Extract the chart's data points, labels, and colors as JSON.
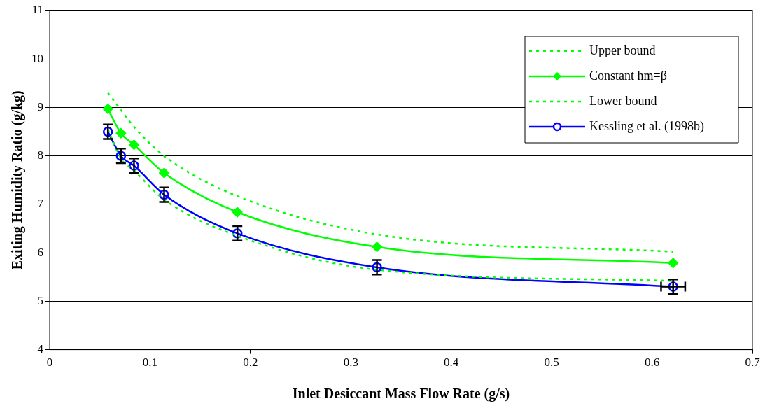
{
  "chart_data": {
    "type": "line",
    "xlabel": "Inlet Desiccant Mass Flow Rate (g/s)",
    "ylabel": "Exiting Humidity Ratio (g/kg)",
    "x": [
      0.058,
      0.071,
      0.084,
      0.114,
      0.187,
      0.326,
      0.621
    ],
    "xlim": [
      0,
      0.7
    ],
    "xticks": [
      0,
      0.1,
      0.2,
      0.3,
      0.4,
      0.5,
      0.6,
      0.7
    ],
    "ylim": [
      4,
      11
    ],
    "yticks": [
      4,
      5,
      6,
      7,
      8,
      9,
      10,
      11
    ],
    "grid": "y",
    "legend": "top right",
    "series": [
      {
        "name": "Upper bound",
        "color": "#00ff00",
        "values": [
          9.3,
          8.95,
          8.6,
          8.0,
          7.17,
          6.38,
          6.02
        ],
        "marker": "none",
        "line_style": "dotted"
      },
      {
        "name": "Constant hm=β",
        "color": "#00ff00",
        "values": [
          8.97,
          8.47,
          8.23,
          7.65,
          6.84,
          6.12,
          5.79
        ],
        "marker": "diamond",
        "line_style": "solid"
      },
      {
        "name": "Lower bound",
        "color": "#00ff00",
        "values": [
          8.55,
          7.95,
          7.7,
          7.1,
          6.35,
          5.65,
          5.42
        ],
        "marker": "none",
        "line_style": "dotted"
      },
      {
        "name": "Kessling et al. (1998b)",
        "color": "#0000ff",
        "values": [
          8.5,
          8.0,
          7.8,
          7.2,
          6.4,
          5.7,
          5.3
        ],
        "marker": "circle",
        "line_style": "solid",
        "errors": [
          0.15,
          0.15,
          0.15,
          0.15,
          0.15,
          0.15,
          0.15
        ],
        "xerrors": [
          null,
          null,
          null,
          null,
          null,
          null,
          0.012
        ]
      }
    ]
  }
}
